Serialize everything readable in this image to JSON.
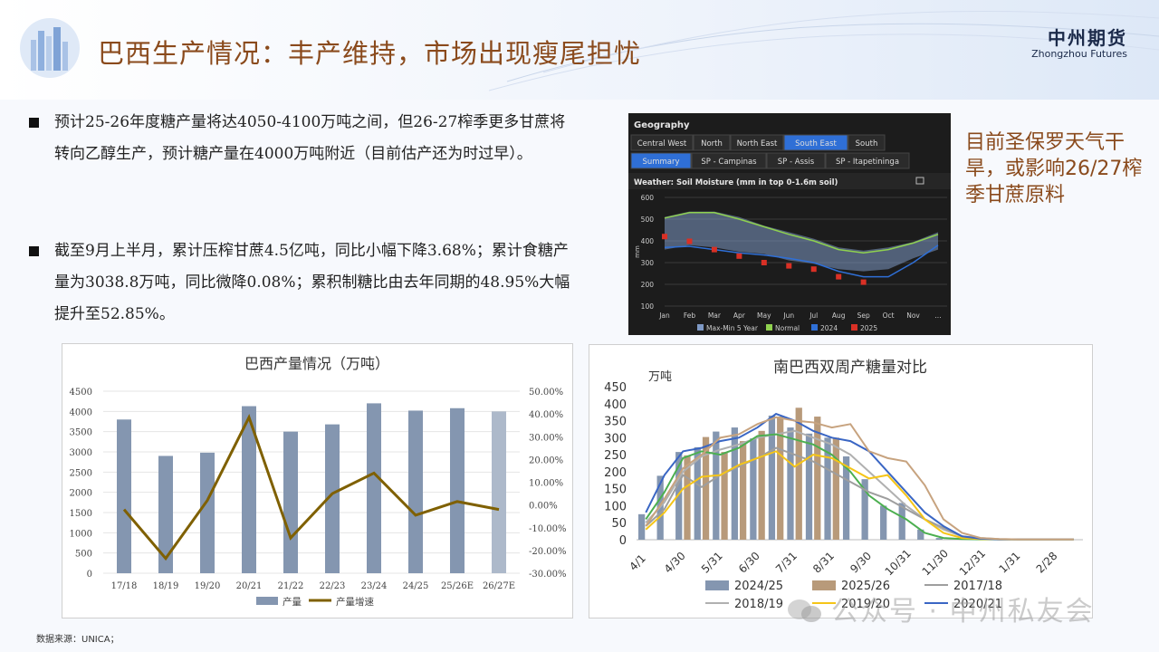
{
  "header": {
    "title": "巴西生产情况：丰产维持，市场出现瘦尾担忧",
    "brand_cn": "中州期货",
    "brand_en": "Zhongzhou Futures"
  },
  "bullets": [
    "预计25-26年度糖产量将达4050-4100万吨之间，但26-27榨季更多甘蔗将转向乙醇生产，预计糖产量在4000万吨附近（目前估产还为时过早）。",
    "截至9月上半月，累计压榨甘蔗4.5亿吨，同比小幅下降3.68%；累计食糖产量为3038.8万吨，同比微降0.08%；累积制糖比由去年同期的48.95%大幅提升至52.85%。"
  ],
  "side_note": "目前圣保罗天气干旱，或影响26/27榨季甘蔗原料",
  "source": "数据来源：UNICA；",
  "watermark": "公众号 · 中州私友会",
  "colors": {
    "title": "#8a4a1c",
    "bar_blue": "#8496b0",
    "bar_light": "#adb9ca",
    "growth_line": "#7f6000",
    "bar_tan": "#b89a7a"
  },
  "weather_panel": {
    "header": "Geography",
    "regions": [
      "Central West",
      "North",
      "North East",
      "South East",
      "South"
    ],
    "selected_region": "South East",
    "subtabs": [
      "Summary",
      "SP - Campinas",
      "SP - Assis",
      "SP - Itapetininga"
    ],
    "selected_subtab": "Summary",
    "chart_title": "Weather: Soil Moisture (mm in top 0-1.6m soil)",
    "y_label": "mm",
    "y_ticks": [
      "600",
      "500",
      "400",
      "300",
      "200",
      "100"
    ],
    "x_ticks": [
      "Jan",
      "Feb",
      "Mar",
      "Apr",
      "May",
      "Jun",
      "Jul",
      "Aug",
      "Sep",
      "Oct",
      "Nov",
      "..."
    ],
    "legend": [
      "Max-Min 5 Year",
      "Normal",
      "2024",
      "2025"
    ]
  },
  "chart_data": [
    {
      "type": "bar",
      "title": "巴西产量情况（万吨）",
      "categories": [
        "17/18",
        "18/19",
        "19/20",
        "20/21",
        "21/22",
        "22/23",
        "23/24",
        "24/25",
        "25/26E",
        "26/27E"
      ],
      "series": [
        {
          "name": "产量",
          "type": "bar",
          "axis": "left",
          "values": [
            3800,
            2900,
            2980,
            4130,
            3500,
            3680,
            4200,
            4020,
            4080,
            4000
          ]
        },
        {
          "name": "产量增速",
          "type": "line",
          "axis": "right",
          "values": [
            -0.02,
            -0.235,
            0.02,
            0.385,
            -0.145,
            0.05,
            0.14,
            -0.045,
            0.015,
            -0.02
          ]
        }
      ],
      "y_left_ticks": [
        "0",
        "500",
        "1000",
        "1500",
        "2000",
        "2500",
        "3000",
        "3500",
        "4000",
        "4500"
      ],
      "y_left_lim": [
        0,
        4500
      ],
      "y_right_ticks": [
        "-30.00%",
        "-20.00%",
        "-10.00%",
        "0.00%",
        "10.00%",
        "20.00%",
        "30.00%",
        "40.00%",
        "50.00%"
      ],
      "y_right_lim": [
        -0.3,
        0.5
      ],
      "legend_position": "bottom",
      "grid": true
    },
    {
      "type": "bar",
      "title": "南巴西双周产糖量对比",
      "ylabel": "万吨",
      "ylim": [
        0,
        450
      ],
      "y_ticks": [
        "0",
        "50",
        "100",
        "150",
        "200",
        "250",
        "300",
        "350",
        "400",
        "450"
      ],
      "x_ticks": [
        "4/1",
        "4/30",
        "5/31",
        "6/30",
        "7/31",
        "8/31",
        "9/30",
        "10/31",
        "11/30",
        "12/31",
        "1/31",
        "2/28"
      ],
      "x_slots": 24,
      "series": [
        {
          "name": "2024/25",
          "type": "bar",
          "color": "#8496b0",
          "values": [
            75,
            188,
            258,
            272,
            318,
            330,
            298,
            365,
            330,
            312,
            300,
            245,
            178,
            100,
            108,
            30,
            5,
            0,
            0,
            0,
            0,
            0,
            0,
            0
          ]
        },
        {
          "name": "2025/26",
          "type": "bar",
          "color": "#b89a7a",
          "values": [
            0,
            0,
            248,
            302,
            258,
            290,
            320,
            362,
            388,
            362,
            300,
            0,
            0,
            0,
            0,
            0,
            0,
            0,
            0,
            0,
            0,
            0,
            0,
            0
          ]
        },
        {
          "name": "2017/18",
          "type": "line",
          "color": "#b0b0b0",
          "values": [
            50,
            110,
            200,
            245,
            265,
            280,
            300,
            310,
            320,
            300,
            280,
            250,
            200,
            150,
            100,
            60,
            30,
            10,
            5,
            2,
            1,
            1,
            1,
            1
          ]
        },
        {
          "name": "2025/26",
          "type": "line",
          "color": "#4caf50",
          "values": [
            60,
            140,
            240,
            260,
            250,
            270,
            305,
            310,
            295,
            280,
            250,
            200,
            130,
            90,
            60,
            20,
            5,
            2,
            1,
            1,
            1,
            1,
            1,
            1
          ]
        },
        {
          "name": "2018/19",
          "type": "line",
          "color": "#9e9e9e",
          "values": [
            40,
            90,
            190,
            155,
            190,
            215,
            240,
            270,
            250,
            230,
            200,
            170,
            140,
            120,
            90,
            60,
            35,
            10,
            3,
            1,
            1,
            1,
            1,
            1
          ]
        },
        {
          "name": "2019/20",
          "type": "line",
          "color": "#f5c518",
          "values": [
            30,
            80,
            150,
            185,
            190,
            220,
            240,
            260,
            215,
            250,
            240,
            210,
            180,
            190,
            130,
            60,
            20,
            5,
            2,
            1,
            1,
            1,
            1,
            1
          ]
        },
        {
          "name": "2020/21",
          "type": "line",
          "color": "#3a66c4",
          "values": [
            80,
            190,
            260,
            270,
            290,
            300,
            330,
            370,
            350,
            320,
            300,
            290,
            260,
            200,
            140,
            80,
            40,
            10,
            3,
            1,
            1,
            1,
            1,
            1
          ]
        },
        {
          "name": "",
          "type": "line",
          "color": "#c7a37f",
          "values": [
            40,
            120,
            210,
            250,
            300,
            310,
            340,
            360,
            350,
            345,
            330,
            340,
            260,
            240,
            230,
            160,
            60,
            20,
            5,
            2,
            1,
            1,
            1,
            1
          ]
        }
      ],
      "legend": [
        "2024/25",
        "2025/26",
        "2017/18",
        "2018/19",
        "2019/20",
        "2020/21"
      ],
      "legend_position": "bottom"
    }
  ]
}
